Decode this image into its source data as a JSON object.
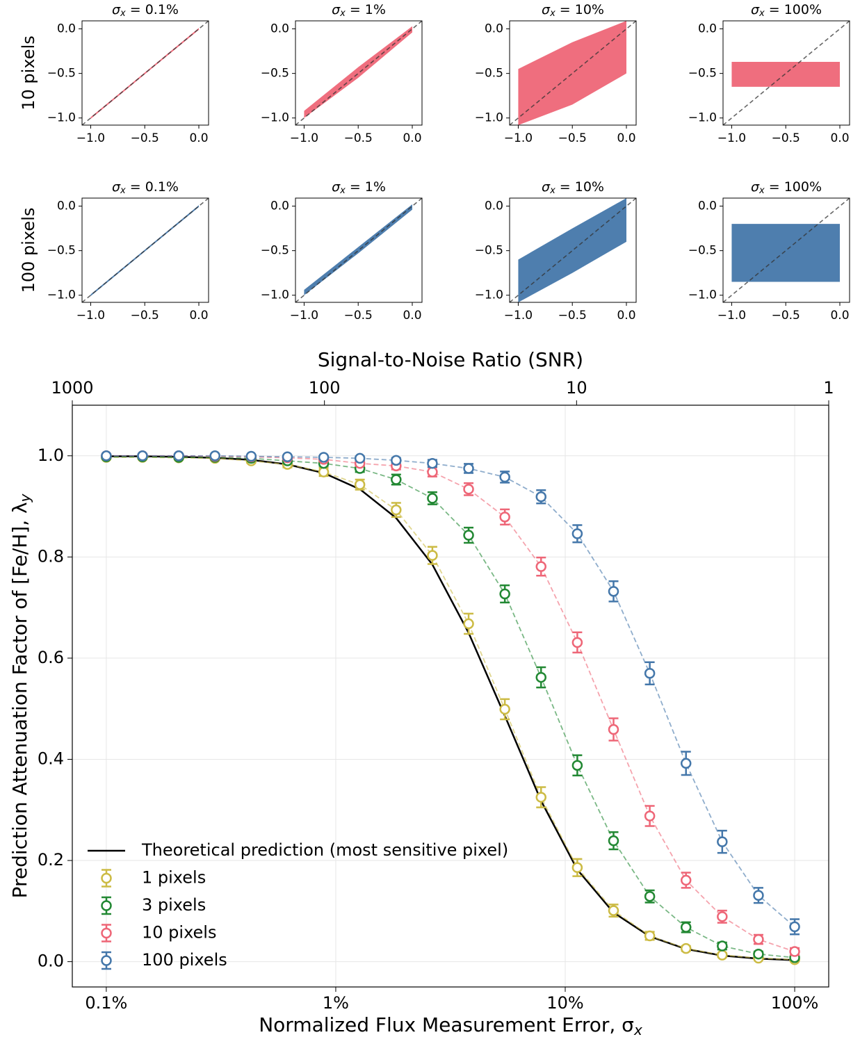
{
  "chart_data": [
    {
      "type": "band",
      "ylabel": "10 pixels",
      "title_symbol": "σ",
      "title_subscript": "x",
      "title": "= 0.1%",
      "color": "#ee6677",
      "x": [
        -1,
        -0.5,
        0
      ],
      "lower": [
        -1.01,
        -0.51,
        -0.01
      ],
      "upper": [
        -0.99,
        -0.49,
        0.01
      ],
      "xlim": [
        -1.08,
        0.09
      ],
      "ylim": [
        -1.08,
        0.09
      ],
      "xticks": [
        {
          "value": -1,
          "label": "−1.0"
        },
        {
          "value": -0.5,
          "label": "−0.5"
        },
        {
          "value": 0,
          "label": "0.0"
        }
      ],
      "yticks": [
        {
          "value": -1,
          "label": "−1.0"
        },
        {
          "value": -0.5,
          "label": "−0.5"
        },
        {
          "value": 0,
          "label": "0.0"
        }
      ]
    },
    {
      "type": "band",
      "title_symbol": "σ",
      "title_subscript": "x",
      "title": "= 1%",
      "color": "#ee6677",
      "x": [
        -1,
        -0.5,
        0
      ],
      "lower": [
        -1.0,
        -0.55,
        -0.04
      ],
      "upper": [
        -0.92,
        -0.43,
        0.03
      ],
      "xlim": [
        -1.08,
        0.09
      ],
      "ylim": [
        -1.08,
        0.09
      ],
      "xticks": [
        {
          "value": -1,
          "label": "−1.0"
        },
        {
          "value": -0.5,
          "label": "−0.5"
        },
        {
          "value": 0,
          "label": "0.0"
        }
      ],
      "yticks": [
        {
          "value": -1,
          "label": "−1.0"
        },
        {
          "value": -0.5,
          "label": "−0.5"
        },
        {
          "value": 0,
          "label": "0.0"
        }
      ]
    },
    {
      "type": "band",
      "title_symbol": "σ",
      "title_subscript": "x",
      "title": "= 10%",
      "color": "#ee6677",
      "x": [
        -1,
        -0.5,
        0
      ],
      "lower": [
        -1.08,
        -0.85,
        -0.5
      ],
      "upper": [
        -0.45,
        -0.15,
        0.09
      ],
      "xlim": [
        -1.08,
        0.09
      ],
      "ylim": [
        -1.08,
        0.09
      ],
      "xticks": [
        {
          "value": -1,
          "label": "−1.0"
        },
        {
          "value": -0.5,
          "label": "−0.5"
        },
        {
          "value": 0,
          "label": "0.0"
        }
      ],
      "yticks": [
        {
          "value": -1,
          "label": "−1.0"
        },
        {
          "value": -0.5,
          "label": "−0.5"
        },
        {
          "value": 0,
          "label": "0.0"
        }
      ]
    },
    {
      "type": "band",
      "title_symbol": "σ",
      "title_subscript": "x",
      "title": "= 100%",
      "color": "#ee6677",
      "x": [
        -1,
        -0.5,
        0
      ],
      "lower": [
        -0.65,
        -0.65,
        -0.65
      ],
      "upper": [
        -0.37,
        -0.37,
        -0.37
      ],
      "xlim": [
        -1.08,
        0.09
      ],
      "ylim": [
        -1.08,
        0.09
      ],
      "xticks": [
        {
          "value": -1,
          "label": "−1.0"
        },
        {
          "value": -0.5,
          "label": "−0.5"
        },
        {
          "value": 0,
          "label": "0.0"
        }
      ],
      "yticks": [
        {
          "value": -1,
          "label": "−1.0"
        },
        {
          "value": -0.5,
          "label": "−0.5"
        },
        {
          "value": 0,
          "label": "0.0"
        }
      ]
    },
    {
      "type": "band",
      "ylabel": "100 pixels",
      "title_symbol": "σ",
      "title_subscript": "x",
      "title": "= 0.1%",
      "color": "#4477aa",
      "x": [
        -1,
        -0.5,
        0
      ],
      "lower": [
        -1.01,
        -0.51,
        -0.01
      ],
      "upper": [
        -0.99,
        -0.49,
        0.01
      ],
      "xlim": [
        -1.08,
        0.09
      ],
      "ylim": [
        -1.08,
        0.09
      ],
      "xticks": [
        {
          "value": -1,
          "label": "−1.0"
        },
        {
          "value": -0.5,
          "label": "−0.5"
        },
        {
          "value": 0,
          "label": "0.0"
        }
      ],
      "yticks": [
        {
          "value": -1,
          "label": "−1.0"
        },
        {
          "value": -0.5,
          "label": "−0.5"
        },
        {
          "value": 0,
          "label": "0.0"
        }
      ]
    },
    {
      "type": "band",
      "title_symbol": "σ",
      "title_subscript": "x",
      "title": "= 1%",
      "color": "#4477aa",
      "x": [
        -1,
        -0.5,
        0
      ],
      "lower": [
        -1.0,
        -0.53,
        -0.04
      ],
      "upper": [
        -0.94,
        -0.46,
        0.02
      ],
      "xlim": [
        -1.08,
        0.09
      ],
      "ylim": [
        -1.08,
        0.09
      ],
      "xticks": [
        {
          "value": -1,
          "label": "−1.0"
        },
        {
          "value": -0.5,
          "label": "−0.5"
        },
        {
          "value": 0,
          "label": "0.0"
        }
      ],
      "yticks": [
        {
          "value": -1,
          "label": "−1.0"
        },
        {
          "value": -0.5,
          "label": "−0.5"
        },
        {
          "value": 0,
          "label": "0.0"
        }
      ]
    },
    {
      "type": "band",
      "title_symbol": "σ",
      "title_subscript": "x",
      "title": "= 10%",
      "color": "#4477aa",
      "x": [
        -1,
        -0.5,
        0
      ],
      "lower": [
        -1.08,
        -0.75,
        -0.4
      ],
      "upper": [
        -0.6,
        -0.25,
        0.09
      ],
      "xlim": [
        -1.08,
        0.09
      ],
      "ylim": [
        -1.08,
        0.09
      ],
      "xticks": [
        {
          "value": -1,
          "label": "−1.0"
        },
        {
          "value": -0.5,
          "label": "−0.5"
        },
        {
          "value": 0,
          "label": "0.0"
        }
      ],
      "yticks": [
        {
          "value": -1,
          "label": "−1.0"
        },
        {
          "value": -0.5,
          "label": "−0.5"
        },
        {
          "value": 0,
          "label": "0.0"
        }
      ]
    },
    {
      "type": "band",
      "title_symbol": "σ",
      "title_subscript": "x",
      "title": "= 100%",
      "color": "#4477aa",
      "x": [
        -1,
        -0.5,
        0
      ],
      "lower": [
        -0.85,
        -0.85,
        -0.85
      ],
      "upper": [
        -0.2,
        -0.2,
        -0.2
      ],
      "xlim": [
        -1.08,
        0.09
      ],
      "ylim": [
        -1.08,
        0.09
      ],
      "xticks": [
        {
          "value": -1,
          "label": "−1.0"
        },
        {
          "value": -0.5,
          "label": "−0.5"
        },
        {
          "value": 0,
          "label": "0.0"
        }
      ],
      "yticks": [
        {
          "value": -1,
          "label": "−1.0"
        },
        {
          "value": -0.5,
          "label": "−0.5"
        },
        {
          "value": 0,
          "label": "0.0"
        }
      ]
    },
    {
      "type": "errorbar",
      "xscale": "log",
      "grid": true,
      "legend": "lower left",
      "xlabel": "Normalized Flux Measurement Error, σ",
      "xlabel_subscript": "x",
      "ylabel": "Prediction Attenuation Factor of [Fe/H], λ",
      "ylabel_subscript": "y",
      "x2label": "Signal-to-Noise Ratio (SNR)",
      "xlim": [
        0.0711,
        140.7
      ],
      "xticks": [
        {
          "value": 0.1,
          "label": "0.1%"
        },
        {
          "value": 1,
          "label": "1%"
        },
        {
          "value": 10,
          "label": "10%"
        },
        {
          "value": 100,
          "label": "100%"
        }
      ],
      "x2lim": [
        1000,
        1
      ],
      "x2ticks": [
        1000,
        100,
        10,
        1
      ],
      "ylim": [
        -0.05,
        1.1
      ],
      "yticks": [
        {
          "value": 0,
          "label": "0.0"
        },
        0.2,
        0.4,
        0.6,
        0.8,
        {
          "value": 1,
          "label": "1.0"
        }
      ],
      "x": [
        0.1,
        0.1438,
        0.2069,
        0.2976,
        0.4281,
        0.6158,
        0.8859,
        1.274,
        1.833,
        2.637,
        3.793,
        5.456,
        7.848,
        11.29,
        16.24,
        23.36,
        33.6,
        48.33,
        69.52,
        100
      ],
      "series": [
        {
          "name": "Theoretical prediction (most sensitive pixel)",
          "color": "#000000",
          "values": [
            0.999,
            0.999,
            0.998,
            0.996,
            0.992,
            0.983,
            0.966,
            0.934,
            0.877,
            0.785,
            0.65,
            0.486,
            0.318,
            0.182,
            0.097,
            0.05,
            0.025,
            0.012,
            0.006,
            0.003
          ]
        },
        {
          "name": "1 pixels",
          "color": "#ccbb44",
          "values": [
            0.997,
            0.997,
            0.996,
            0.995,
            0.99,
            0.983,
            0.968,
            0.943,
            0.893,
            0.803,
            0.668,
            0.499,
            0.325,
            0.186,
            0.101,
            0.051,
            0.026,
            0.013,
            0.007,
            0.004
          ],
          "errors": [
            0.003,
            0.003,
            0.003,
            0.003,
            0.004,
            0.006,
            0.008,
            0.01,
            0.014,
            0.017,
            0.02,
            0.02,
            0.02,
            0.017,
            0.012,
            0.008,
            0.005,
            0.004,
            0.003,
            0.003
          ]
        },
        {
          "name": "3 pixels",
          "color": "#228833",
          "values": [
            0.998,
            0.998,
            0.997,
            0.997,
            0.995,
            0.99,
            0.985,
            0.975,
            0.953,
            0.916,
            0.843,
            0.727,
            0.562,
            0.388,
            0.239,
            0.129,
            0.068,
            0.031,
            0.015,
            0.008
          ],
          "errors": [
            0.002,
            0.002,
            0.002,
            0.002,
            0.003,
            0.004,
            0.005,
            0.007,
            0.01,
            0.012,
            0.015,
            0.017,
            0.02,
            0.02,
            0.017,
            0.012,
            0.01,
            0.007,
            0.005,
            0.004
          ]
        },
        {
          "name": "10 pixels",
          "color": "#ee6677",
          "values": [
            1.0,
            1.0,
            1.0,
            0.999,
            0.998,
            0.996,
            0.993,
            0.985,
            0.98,
            0.968,
            0.934,
            0.879,
            0.781,
            0.631,
            0.459,
            0.288,
            0.161,
            0.089,
            0.044,
            0.02
          ],
          "errors": [
            0.002,
            0.002,
            0.002,
            0.002,
            0.002,
            0.003,
            0.004,
            0.005,
            0.007,
            0.009,
            0.012,
            0.015,
            0.018,
            0.02,
            0.022,
            0.02,
            0.015,
            0.012,
            0.009,
            0.007
          ]
        },
        {
          "name": "100 pixels",
          "color": "#4477aa",
          "values": [
            1.0,
            1.0,
            1.0,
            1.0,
            0.999,
            0.998,
            0.997,
            0.995,
            0.991,
            0.985,
            0.975,
            0.958,
            0.919,
            0.846,
            0.732,
            0.57,
            0.392,
            0.237,
            0.131,
            0.069
          ],
          "errors": [
            0.002,
            0.002,
            0.002,
            0.002,
            0.002,
            0.002,
            0.003,
            0.004,
            0.005,
            0.007,
            0.009,
            0.011,
            0.013,
            0.017,
            0.02,
            0.022,
            0.023,
            0.022,
            0.015,
            0.015
          ]
        }
      ]
    }
  ]
}
